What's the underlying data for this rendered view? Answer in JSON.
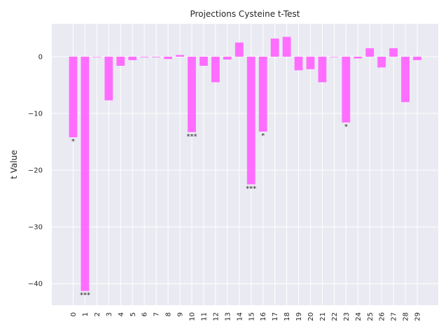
{
  "chart_data": {
    "type": "bar",
    "title": "Projections Cysteine t-Test",
    "xlabel": "",
    "ylabel": "t Value",
    "categories": [
      "0",
      "1",
      "2",
      "3",
      "4",
      "5",
      "6",
      "7",
      "8",
      "9",
      "10",
      "11",
      "12",
      "13",
      "14",
      "15",
      "16",
      "17",
      "18",
      "19",
      "20",
      "21",
      "22",
      "23",
      "24",
      "25",
      "26",
      "27",
      "28",
      "29"
    ],
    "values": [
      -14.2,
      -41.3,
      0.0,
      -7.7,
      -1.6,
      -0.6,
      -0.1,
      -0.1,
      -0.4,
      0.3,
      -13.3,
      -1.6,
      -4.5,
      -0.5,
      2.5,
      -22.5,
      -13.2,
      3.2,
      3.5,
      -2.4,
      -2.2,
      -4.5,
      0.0,
      -11.6,
      -0.3,
      1.5,
      -1.9,
      1.5,
      -8.0,
      -0.6
    ],
    "annotations": [
      {
        "index": 0,
        "text": "*"
      },
      {
        "index": 1,
        "text": "***"
      },
      {
        "index": 10,
        "text": "***"
      },
      {
        "index": 15,
        "text": "***"
      },
      {
        "index": 16,
        "text": "*"
      },
      {
        "index": 23,
        "text": "*"
      }
    ],
    "yticks": [
      0,
      -10,
      -20,
      -30,
      -40
    ],
    "ytick_labels": [
      "0",
      "−10",
      "−20",
      "−30",
      "−40"
    ],
    "ylim": [
      -43.8,
      5.8
    ],
    "grid": true,
    "bar_color": "#ff66ff",
    "background_color": "#eaeaf2",
    "grid_color": "#ffffff"
  }
}
